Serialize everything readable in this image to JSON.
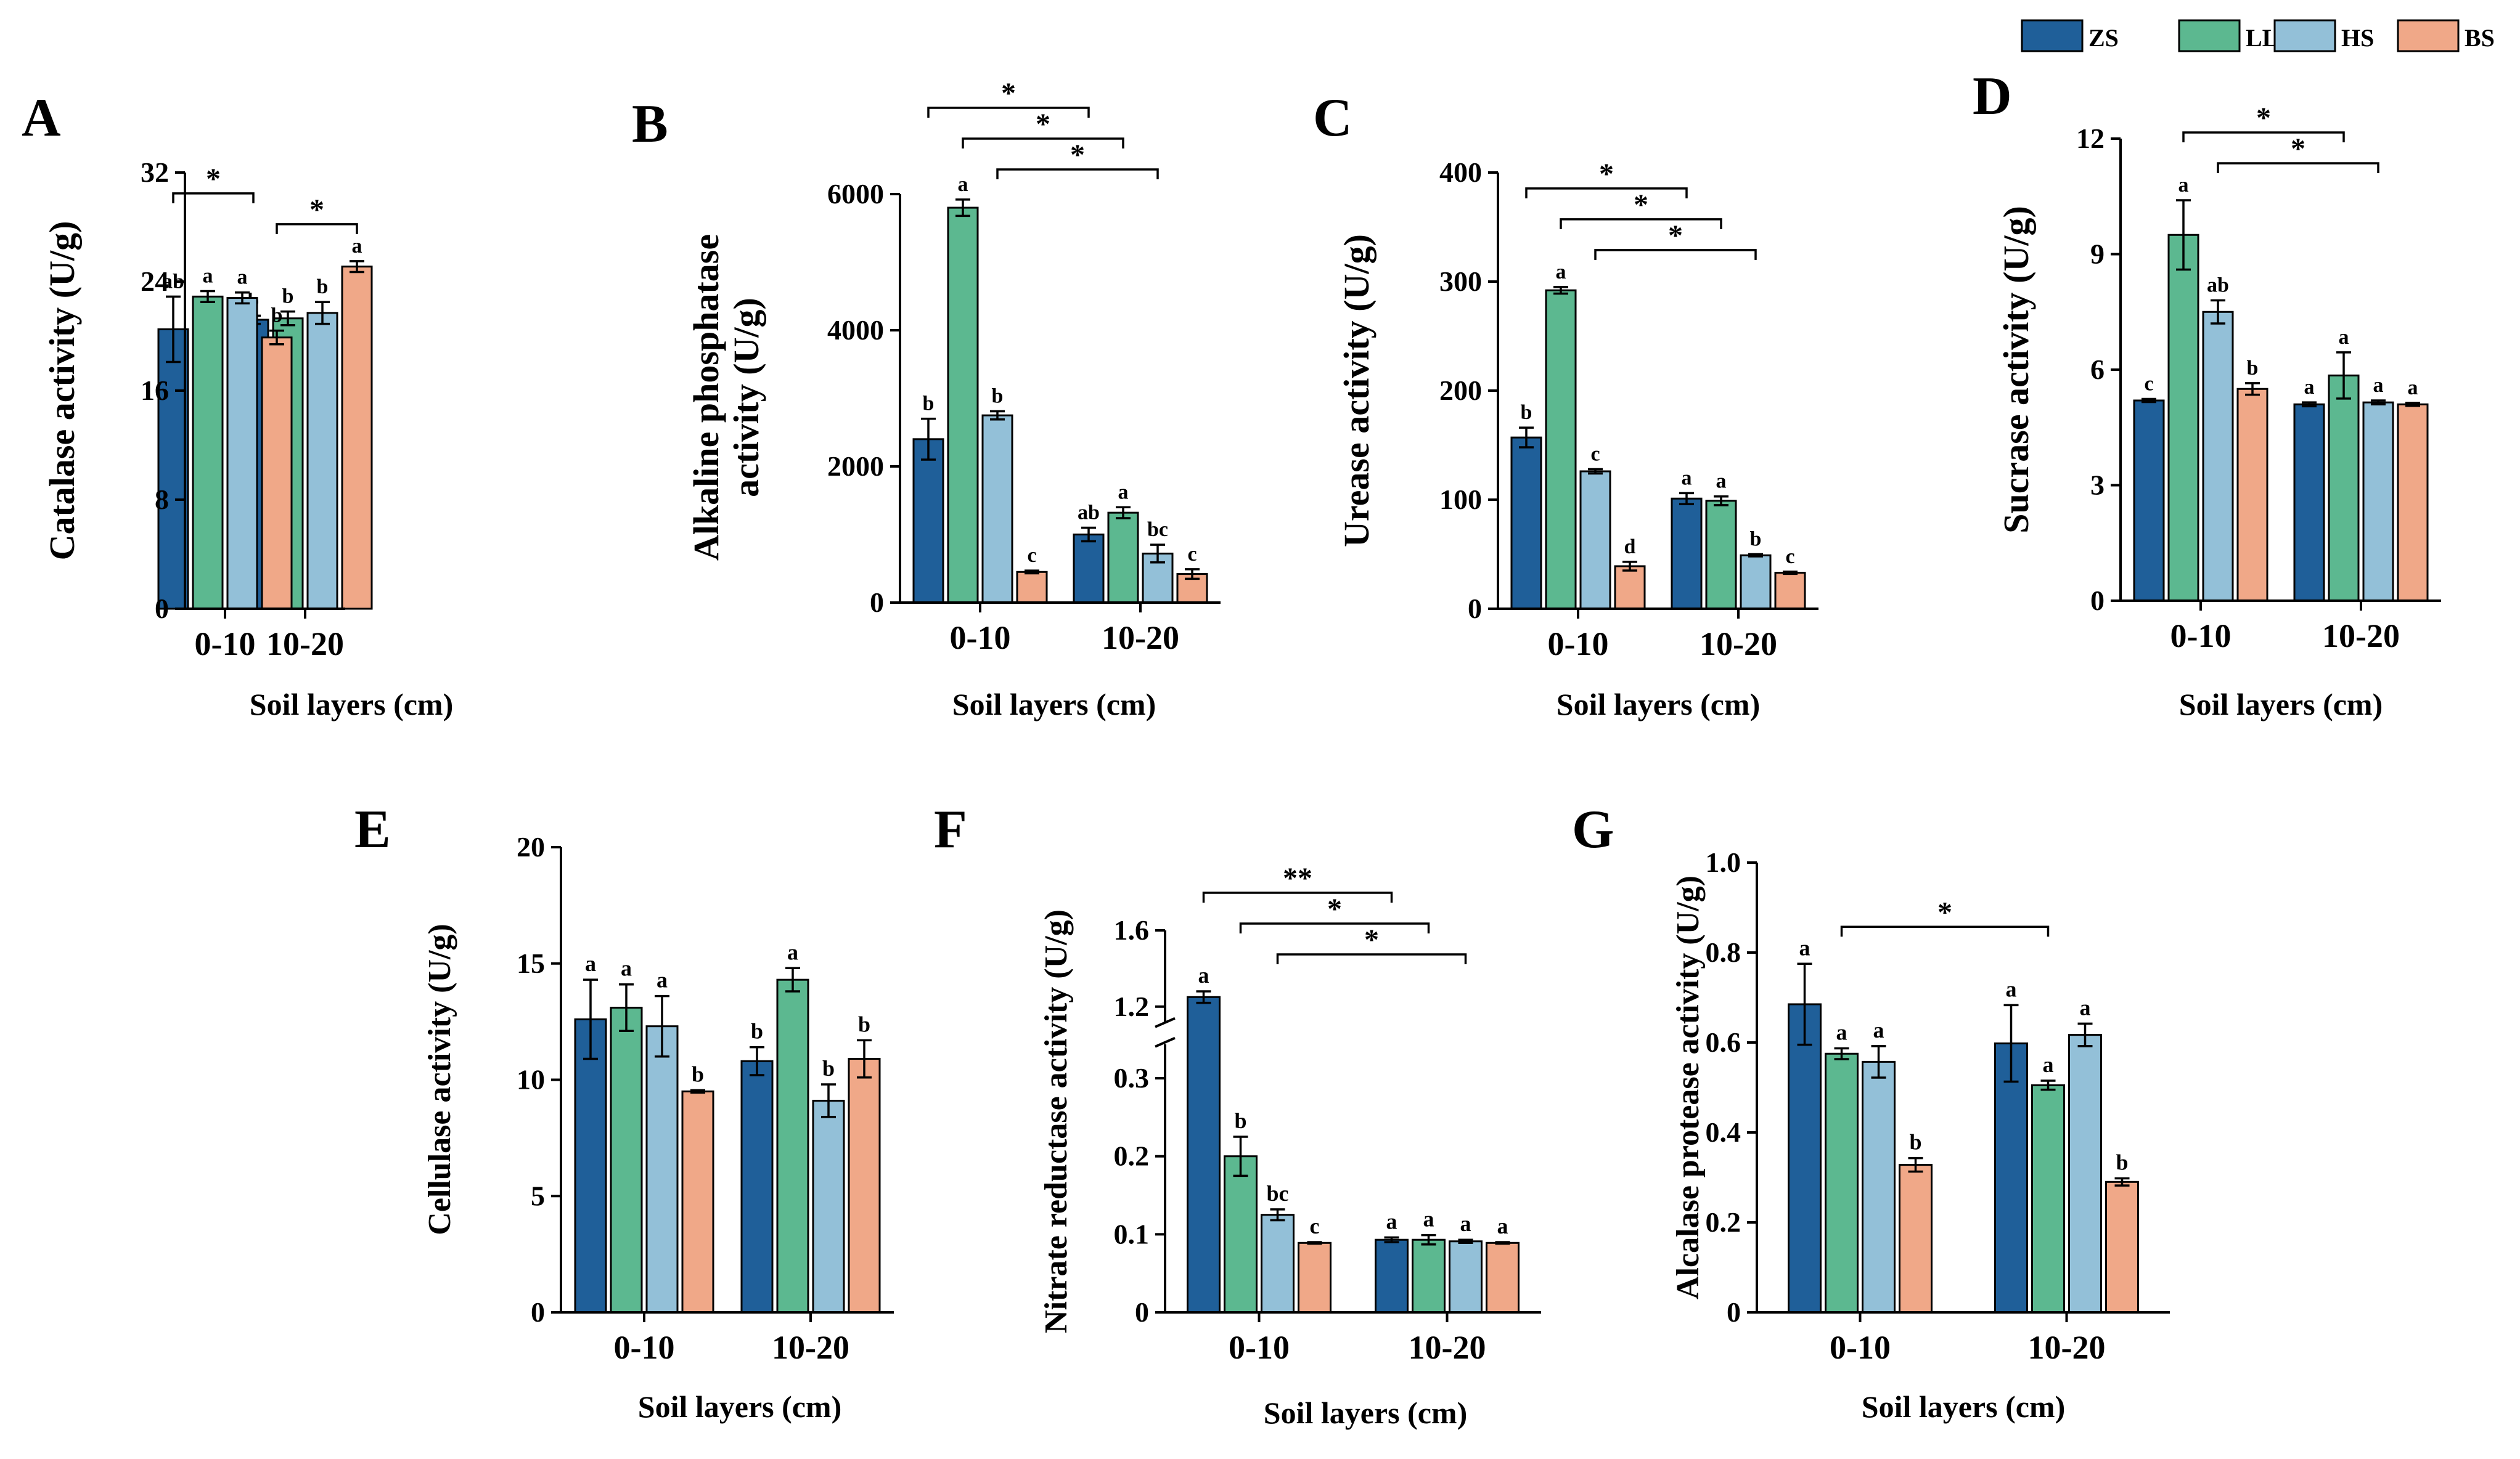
{
  "legend": {
    "series": [
      "ZS",
      "LL",
      "HS",
      "BS"
    ],
    "colors": [
      "#1f5f99",
      "#5cb890",
      "#93c0d8",
      "#f0a888"
    ]
  },
  "chart_data": [
    {
      "type": "bar",
      "panel": "A",
      "ylabel": "Catalase activity (U/g)",
      "xlabel": "Soil layers (cm)",
      "categories": [
        "0-10",
        "10-20"
      ],
      "ylim": [
        0,
        32
      ],
      "yticks": [
        "0",
        "8",
        "16",
        "24",
        "32"
      ],
      "series": [
        {
          "name": "ZS",
          "values": [
            20.5,
            21.2
          ],
          "errors": [
            2.4,
            0.3
          ],
          "letters": [
            "ab",
            "b"
          ]
        },
        {
          "name": "LL",
          "values": [
            22.9,
            21.3
          ],
          "errors": [
            0.4,
            0.5
          ],
          "letters": [
            "a",
            "b"
          ]
        },
        {
          "name": "HS",
          "values": [
            22.8,
            21.7
          ],
          "errors": [
            0.4,
            0.8
          ],
          "letters": [
            "a",
            "b"
          ]
        },
        {
          "name": "BS",
          "values": [
            19.9,
            25.1
          ],
          "errors": [
            0.5,
            0.4
          ],
          "letters": [
            "b",
            "a"
          ]
        }
      ],
      "significance": [
        {
          "from": [
            0,
            0
          ],
          "to": [
            1,
            0
          ],
          "label": "*"
        },
        {
          "from": [
            0,
            3
          ],
          "to": [
            1,
            3
          ],
          "label": "*"
        }
      ]
    },
    {
      "type": "bar",
      "panel": "B",
      "ylabel": [
        "Alkaline phosphatase",
        "activity (U/g)"
      ],
      "xlabel": "Soil layers (cm)",
      "categories": [
        "0-10",
        "10-20"
      ],
      "ylim": [
        0,
        6000
      ],
      "yticks": [
        "0",
        "2000",
        "4000",
        "6000"
      ],
      "series": [
        {
          "name": "ZS",
          "values": [
            2400,
            1000
          ],
          "errors": [
            300,
            100
          ],
          "letters": [
            "b",
            "ab"
          ]
        },
        {
          "name": "LL",
          "values": [
            5800,
            1320
          ],
          "errors": [
            120,
            80
          ],
          "letters": [
            "a",
            "a"
          ]
        },
        {
          "name": "HS",
          "values": [
            2750,
            720
          ],
          "errors": [
            60,
            130
          ],
          "letters": [
            "b",
            "bc"
          ]
        },
        {
          "name": "BS",
          "values": [
            450,
            420
          ],
          "errors": [
            20,
            70
          ],
          "letters": [
            "c",
            "c"
          ]
        }
      ],
      "significance": [
        {
          "from": [
            0,
            0
          ],
          "to": [
            1,
            0
          ],
          "label": "*"
        },
        {
          "from": [
            0,
            1
          ],
          "to": [
            1,
            1
          ],
          "label": "*"
        },
        {
          "from": [
            0,
            2
          ],
          "to": [
            1,
            2
          ],
          "label": "*"
        }
      ]
    },
    {
      "type": "bar",
      "panel": "C",
      "ylabel": "Urease activity (U/g)",
      "xlabel": "Soil layers (cm)",
      "categories": [
        "0-10",
        "10-20"
      ],
      "ylim": [
        0,
        400
      ],
      "yticks": [
        "0",
        "100",
        "200",
        "300",
        "400"
      ],
      "series": [
        {
          "name": "ZS",
          "values": [
            157,
            101
          ],
          "errors": [
            9,
            5
          ],
          "letters": [
            "b",
            "a"
          ]
        },
        {
          "name": "LL",
          "values": [
            292,
            99
          ],
          "errors": [
            3,
            4
          ],
          "letters": [
            "a",
            "a"
          ]
        },
        {
          "name": "HS",
          "values": [
            126,
            49
          ],
          "errors": [
            2,
            1
          ],
          "letters": [
            "c",
            "b"
          ]
        },
        {
          "name": "BS",
          "values": [
            39,
            33
          ],
          "errors": [
            4,
            1
          ],
          "letters": [
            "d",
            "c"
          ]
        }
      ],
      "significance": [
        {
          "from": [
            0,
            0
          ],
          "to": [
            1,
            0
          ],
          "label": "*"
        },
        {
          "from": [
            0,
            1
          ],
          "to": [
            1,
            1
          ],
          "label": "*"
        },
        {
          "from": [
            0,
            2
          ],
          "to": [
            1,
            2
          ],
          "label": "*"
        }
      ]
    },
    {
      "type": "bar",
      "panel": "D",
      "ylabel": "Sucrase activity (U/g)",
      "xlabel": "Soil layers (cm)",
      "categories": [
        "0-10",
        "10-20"
      ],
      "ylim": [
        0,
        12
      ],
      "yticks": [
        "0",
        "3",
        "6",
        "9",
        "12"
      ],
      "series": [
        {
          "name": "ZS",
          "values": [
            5.2,
            5.1
          ],
          "errors": [
            0.04,
            0.05
          ],
          "letters": [
            "c",
            "a"
          ]
        },
        {
          "name": "LL",
          "values": [
            9.5,
            5.85
          ],
          "errors": [
            0.9,
            0.6
          ],
          "letters": [
            "a",
            "a"
          ]
        },
        {
          "name": "HS",
          "values": [
            7.5,
            5.15
          ],
          "errors": [
            0.3,
            0.05
          ],
          "letters": [
            "ab",
            "a"
          ]
        },
        {
          "name": "BS",
          "values": [
            5.5,
            5.1
          ],
          "errors": [
            0.15,
            0.04
          ],
          "letters": [
            "b",
            "a"
          ]
        }
      ],
      "significance": [
        {
          "from": [
            0,
            1
          ],
          "to": [
            1,
            1
          ],
          "label": "*"
        },
        {
          "from": [
            0,
            2
          ],
          "to": [
            1,
            2
          ],
          "label": "*"
        }
      ]
    },
    {
      "type": "bar",
      "panel": "E",
      "ylabel": "Cellulase activity (U/g)",
      "xlabel": "Soil layers (cm)",
      "categories": [
        "0-10",
        "10-20"
      ],
      "ylim": [
        0,
        20
      ],
      "yticks": [
        "0",
        "5",
        "10",
        "15",
        "20"
      ],
      "series": [
        {
          "name": "ZS",
          "values": [
            12.6,
            10.8
          ],
          "errors": [
            1.7,
            0.6
          ],
          "letters": [
            "a",
            "b"
          ]
        },
        {
          "name": "LL",
          "values": [
            13.1,
            14.3
          ],
          "errors": [
            1.0,
            0.5
          ],
          "letters": [
            "a",
            "a"
          ]
        },
        {
          "name": "HS",
          "values": [
            12.3,
            9.1
          ],
          "errors": [
            1.3,
            0.7
          ],
          "letters": [
            "a",
            "b"
          ]
        },
        {
          "name": "BS",
          "values": [
            9.5,
            10.9
          ],
          "errors": [
            0.05,
            0.8
          ],
          "letters": [
            "b",
            "b"
          ]
        }
      ],
      "significance": []
    },
    {
      "type": "bar",
      "panel": "F",
      "ylabel": "Nitrate reductase activity (U/g)",
      "xlabel": "Soil layers (cm)",
      "categories": [
        "0-10",
        "10-20"
      ],
      "ylim": [
        0,
        1.6
      ],
      "axis_break": [
        0.35,
        1.1
      ],
      "yticks": [
        "0",
        "0.1",
        "0.2",
        "0.3",
        "1.2",
        "1.6"
      ],
      "series": [
        {
          "name": "ZS",
          "values": [
            1.25,
            0.093
          ],
          "errors": [
            0.03,
            0.003
          ],
          "letters": [
            "a",
            "a"
          ]
        },
        {
          "name": "LL",
          "values": [
            0.2,
            0.093
          ],
          "errors": [
            0.025,
            0.006
          ],
          "letters": [
            "b",
            "a"
          ]
        },
        {
          "name": "HS",
          "values": [
            0.125,
            0.091
          ],
          "errors": [
            0.007,
            0.002
          ],
          "letters": [
            "bc",
            "a"
          ]
        },
        {
          "name": "BS",
          "values": [
            0.089,
            0.089
          ],
          "errors": [
            0.001,
            0.001
          ],
          "letters": [
            "c",
            "a"
          ]
        }
      ],
      "significance": [
        {
          "from": [
            0,
            0
          ],
          "to": [
            1,
            0
          ],
          "label": "**"
        },
        {
          "from": [
            0,
            1
          ],
          "to": [
            1,
            1
          ],
          "label": "*"
        },
        {
          "from": [
            0,
            2
          ],
          "to": [
            1,
            2
          ],
          "label": "*"
        }
      ]
    },
    {
      "type": "bar",
      "panel": "G",
      "ylabel": "Alcalase protease activity (U/g)",
      "xlabel": "Soil layers (cm)",
      "categories": [
        "0-10",
        "10-20"
      ],
      "ylim": [
        0,
        1.0
      ],
      "yticks": [
        "0",
        "0.2",
        "0.4",
        "0.6",
        "0.8",
        "1.0"
      ],
      "series": [
        {
          "name": "ZS",
          "values": [
            0.685,
            0.598
          ],
          "errors": [
            0.09,
            0.085
          ],
          "letters": [
            "a",
            "a"
          ]
        },
        {
          "name": "LL",
          "values": [
            0.575,
            0.505
          ],
          "errors": [
            0.012,
            0.01
          ],
          "letters": [
            "a",
            "a"
          ]
        },
        {
          "name": "HS",
          "values": [
            0.557,
            0.617
          ],
          "errors": [
            0.035,
            0.025
          ],
          "letters": [
            "a",
            "a"
          ]
        },
        {
          "name": "BS",
          "values": [
            0.328,
            0.29
          ],
          "errors": [
            0.015,
            0.008
          ],
          "letters": [
            "b",
            "b"
          ]
        }
      ],
      "significance": [
        {
          "from": [
            0,
            1
          ],
          "to": [
            1,
            1
          ],
          "label": "*"
        }
      ]
    }
  ]
}
